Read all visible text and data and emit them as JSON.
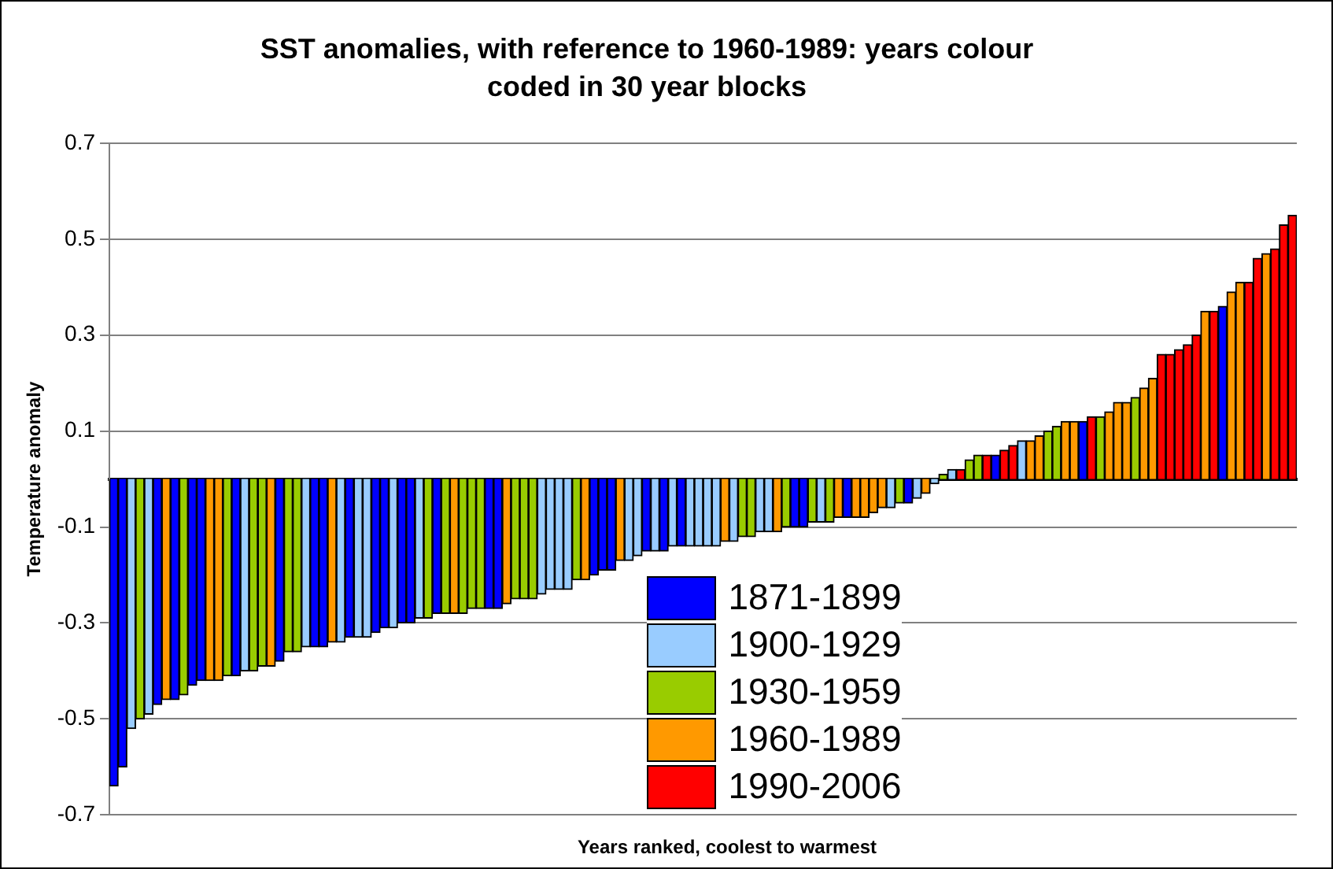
{
  "chart_data": {
    "type": "bar",
    "title": "SST anomalies, with reference to 1960-1989: years colour coded in 30 year blocks",
    "xlabel": "Years ranked, coolest to warmest",
    "ylabel": "Temperature anomaly",
    "categories": [
      null,
      null,
      null,
      null,
      null,
      null,
      null,
      null,
      null,
      null,
      null,
      null,
      null,
      null,
      null,
      null,
      null,
      null,
      null,
      null,
      null,
      null,
      null,
      null,
      null,
      null,
      null,
      null,
      null,
      null,
      null,
      null,
      null,
      null,
      null,
      null,
      null,
      null,
      null,
      null,
      null,
      null,
      null,
      null,
      null,
      null,
      null,
      null,
      null,
      null,
      null,
      null,
      null,
      null,
      null,
      null,
      null,
      null,
      null,
      null,
      null,
      null,
      null,
      null,
      null,
      null,
      null,
      null,
      null,
      null,
      null,
      null,
      null,
      null,
      null,
      null,
      null,
      null,
      null,
      null,
      null,
      null,
      null,
      null,
      null,
      null,
      null,
      null,
      null,
      null,
      null,
      null,
      null,
      null,
      null,
      null,
      null,
      null,
      null,
      null,
      null,
      null,
      null,
      null,
      null,
      null,
      null,
      null,
      null,
      null,
      null,
      null,
      null,
      null,
      null,
      null,
      null,
      null,
      null,
      null,
      null,
      null,
      null,
      null,
      null,
      null,
      null,
      null,
      null,
      null,
      null,
      null,
      null,
      null,
      null,
      null
    ],
    "series": [
      {
        "name": "1871-1899",
        "color": "#0000ff",
        "values": [
          -0.64,
          -0.6,
          null,
          null,
          null,
          -0.47,
          null,
          -0.46,
          null,
          -0.43,
          -0.42,
          null,
          null,
          null,
          -0.41,
          null,
          null,
          null,
          null,
          -0.38,
          null,
          null,
          null,
          -0.35,
          -0.35,
          null,
          null,
          -0.33,
          null,
          null,
          -0.32,
          -0.31,
          null,
          -0.3,
          -0.3,
          null,
          null,
          -0.28,
          null,
          null,
          null,
          null,
          null,
          -0.27,
          -0.27,
          null,
          null,
          null,
          null,
          null,
          null,
          null,
          null,
          null,
          null,
          -0.2,
          -0.19,
          -0.19,
          null,
          null,
          null,
          -0.15,
          null,
          -0.15,
          null,
          -0.14,
          null,
          null,
          null,
          null,
          null,
          null,
          null,
          null,
          null,
          null,
          null,
          null,
          -0.1,
          -0.1,
          null,
          null,
          null,
          null,
          -0.08,
          null,
          null,
          null,
          null,
          null,
          null,
          -0.05,
          null,
          null,
          null,
          null,
          null,
          null,
          null,
          null,
          null,
          0.05,
          null,
          null,
          null,
          null,
          null,
          null,
          null,
          null,
          null,
          0.12,
          null,
          null,
          null,
          null,
          null,
          null,
          null,
          null,
          null,
          null,
          null,
          null,
          null,
          null,
          null,
          0.36,
          null,
          null,
          null,
          null,
          null,
          null,
          null,
          null
        ]
      },
      {
        "name": "1900-1929",
        "color": "#99ccff",
        "values": [
          null,
          null,
          -0.52,
          null,
          -0.49,
          null,
          null,
          null,
          null,
          null,
          null,
          null,
          null,
          null,
          null,
          -0.4,
          null,
          null,
          null,
          null,
          null,
          null,
          -0.35,
          null,
          null,
          null,
          -0.34,
          null,
          -0.33,
          -0.33,
          null,
          null,
          -0.31,
          null,
          null,
          -0.29,
          null,
          null,
          null,
          null,
          null,
          null,
          null,
          null,
          null,
          null,
          null,
          null,
          null,
          -0.24,
          -0.23,
          -0.23,
          -0.23,
          null,
          null,
          null,
          null,
          null,
          null,
          -0.17,
          -0.16,
          null,
          -0.15,
          null,
          -0.14,
          null,
          -0.14,
          -0.14,
          -0.14,
          -0.14,
          null,
          -0.13,
          null,
          null,
          -0.11,
          -0.11,
          null,
          null,
          null,
          null,
          null,
          -0.09,
          null,
          null,
          null,
          null,
          null,
          null,
          null,
          -0.06,
          null,
          null,
          -0.04,
          null,
          -0.01,
          null,
          0.02,
          null,
          null,
          null,
          null,
          null,
          null,
          null,
          0.08,
          null,
          null,
          null,
          null,
          null,
          null,
          null,
          null,
          null,
          null,
          null,
          null,
          null,
          null,
          null,
          null,
          null,
          null,
          null,
          null,
          null,
          null,
          null,
          null,
          null,
          null,
          null,
          null,
          null,
          null,
          null
        ]
      },
      {
        "name": "1930-1959",
        "color": "#99cc00",
        "values": [
          null,
          null,
          null,
          -0.5,
          null,
          null,
          null,
          null,
          -0.45,
          null,
          null,
          null,
          null,
          -0.41,
          null,
          null,
          -0.4,
          -0.39,
          null,
          null,
          -0.36,
          -0.36,
          null,
          null,
          null,
          null,
          null,
          null,
          null,
          null,
          null,
          null,
          null,
          null,
          null,
          null,
          -0.29,
          null,
          -0.28,
          null,
          -0.28,
          -0.27,
          -0.27,
          null,
          null,
          null,
          -0.25,
          -0.25,
          -0.25,
          null,
          null,
          null,
          null,
          -0.21,
          null,
          null,
          null,
          null,
          null,
          null,
          null,
          null,
          null,
          null,
          null,
          null,
          null,
          null,
          null,
          null,
          null,
          null,
          -0.12,
          -0.12,
          null,
          null,
          null,
          -0.1,
          null,
          null,
          -0.09,
          null,
          -0.09,
          null,
          null,
          null,
          null,
          null,
          null,
          null,
          -0.05,
          null,
          null,
          null,
          null,
          0.01,
          null,
          null,
          0.04,
          0.05,
          null,
          null,
          null,
          null,
          null,
          null,
          null,
          0.1,
          0.11,
          null,
          null,
          null,
          null,
          0.13,
          null,
          null,
          null,
          0.17,
          null,
          null,
          null,
          null,
          null,
          null,
          null,
          null,
          null,
          null,
          null,
          null,
          null,
          null,
          null,
          null,
          null,
          null
        ]
      },
      {
        "name": "1960-1989",
        "color": "#ff9900",
        "values": [
          null,
          null,
          null,
          null,
          null,
          null,
          -0.46,
          null,
          null,
          null,
          null,
          -0.42,
          -0.42,
          null,
          null,
          null,
          null,
          null,
          -0.39,
          null,
          null,
          null,
          null,
          null,
          null,
          -0.34,
          null,
          null,
          null,
          null,
          null,
          null,
          null,
          null,
          null,
          null,
          null,
          null,
          null,
          -0.28,
          null,
          null,
          null,
          null,
          null,
          -0.26,
          null,
          null,
          null,
          null,
          null,
          null,
          null,
          null,
          -0.21,
          null,
          null,
          null,
          -0.17,
          null,
          null,
          null,
          null,
          null,
          null,
          null,
          null,
          null,
          null,
          null,
          -0.13,
          null,
          null,
          null,
          null,
          null,
          -0.11,
          null,
          null,
          null,
          null,
          null,
          null,
          -0.08,
          null,
          -0.08,
          -0.08,
          -0.07,
          -0.06,
          null,
          null,
          null,
          null,
          -0.03,
          null,
          null,
          null,
          null,
          null,
          null,
          null,
          null,
          null,
          null,
          null,
          0.08,
          0.09,
          null,
          null,
          0.12,
          0.12,
          null,
          null,
          null,
          0.14,
          0.16,
          0.16,
          null,
          0.19,
          0.21,
          null,
          null,
          null,
          null,
          null,
          0.35,
          null,
          null,
          0.39,
          0.41,
          null,
          null,
          0.47,
          null,
          null,
          null
        ]
      },
      {
        "name": "1990-2006",
        "color": "#ff0000",
        "values": [
          null,
          null,
          null,
          null,
          null,
          null,
          null,
          null,
          null,
          null,
          null,
          null,
          null,
          null,
          null,
          null,
          null,
          null,
          null,
          null,
          null,
          null,
          null,
          null,
          null,
          null,
          null,
          null,
          null,
          null,
          null,
          null,
          null,
          null,
          null,
          null,
          null,
          null,
          null,
          null,
          null,
          null,
          null,
          null,
          null,
          null,
          null,
          null,
          null,
          null,
          null,
          null,
          null,
          null,
          null,
          null,
          null,
          null,
          null,
          null,
          null,
          null,
          null,
          null,
          null,
          null,
          null,
          null,
          null,
          null,
          null,
          null,
          null,
          null,
          null,
          null,
          null,
          null,
          null,
          null,
          null,
          null,
          null,
          null,
          null,
          null,
          null,
          null,
          null,
          null,
          null,
          null,
          null,
          null,
          null,
          null,
          null,
          0.02,
          null,
          null,
          0.05,
          null,
          0.06,
          0.07,
          null,
          null,
          null,
          null,
          null,
          null,
          null,
          null,
          0.13,
          null,
          null,
          null,
          null,
          null,
          null,
          null,
          0.26,
          0.26,
          0.27,
          0.28,
          0.3,
          null,
          0.35,
          null,
          null,
          null,
          0.41,
          0.46,
          null,
          0.48,
          0.53,
          0.55
        ]
      }
    ],
    "ylim": [
      -0.7,
      0.7
    ],
    "yticks": [
      -0.7,
      -0.5,
      -0.3,
      -0.1,
      0.1,
      0.3,
      0.5,
      0.7
    ],
    "grid": "y",
    "legend": "bottom"
  }
}
